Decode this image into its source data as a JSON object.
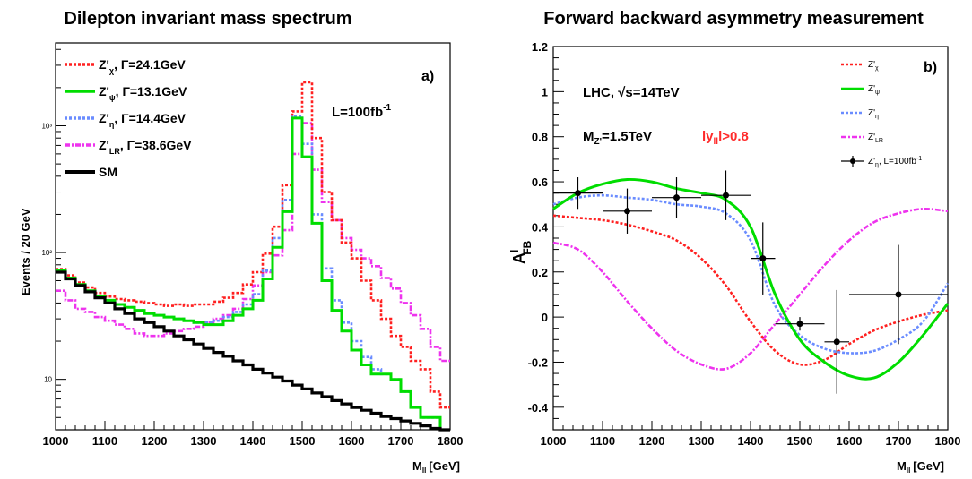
{
  "chart_data": [
    {
      "type": "line",
      "title": "Dilepton invariant mass spectrum",
      "xlabel": "M_ll [GeV]",
      "xlabel_text": "M",
      "xlabel_sub": "ll",
      "xlabel_unit": "[GeV]",
      "ylabel": "Events / 20 GeV",
      "yscale": "log",
      "xlim": [
        1000,
        1800
      ],
      "ylim": [
        4,
        4500
      ],
      "x_ticks": [
        "1000",
        "1100",
        "1200",
        "1300",
        "1400",
        "1500",
        "1600",
        "1700",
        "1800"
      ],
      "y_ticks": [
        {
          "value": 10,
          "label": "10"
        },
        {
          "value": 100,
          "label": "10²"
        },
        {
          "value": 1000,
          "label": "10³"
        }
      ],
      "panel_label": "a)",
      "lumi_label": "L=100fb",
      "lumi_sup": "-1",
      "bin_edges": [
        1000,
        1020,
        1040,
        1060,
        1080,
        1100,
        1120,
        1140,
        1160,
        1180,
        1200,
        1220,
        1240,
        1260,
        1280,
        1300,
        1320,
        1340,
        1360,
        1380,
        1400,
        1420,
        1440,
        1460,
        1480,
        1500,
        1520,
        1540,
        1560,
        1580,
        1600,
        1620,
        1640,
        1660,
        1680,
        1700,
        1720,
        1740,
        1760,
        1780,
        1800
      ],
      "series": [
        {
          "name": "Z'χ",
          "legend_label": "Z'",
          "legend_sub": "χ",
          "legend_width": "Γ=24.1GeV",
          "color": "#ff2020",
          "style": "dotted",
          "values": [
            74,
            66,
            58,
            53,
            48,
            45,
            43,
            42,
            41,
            40,
            39,
            38,
            39,
            38,
            39,
            39,
            41,
            44,
            48,
            56,
            70,
            98,
            160,
            340,
            1300,
            2200,
            800,
            300,
            180,
            120,
            90,
            60,
            42,
            30,
            22,
            18,
            14,
            12,
            8,
            6
          ]
        },
        {
          "name": "Z'ψ",
          "legend_label": "Z'",
          "legend_sub": "ψ",
          "legend_width": "Γ=13.1GeV",
          "color": "#00dd00",
          "style": "solid",
          "values": [
            72,
            63,
            56,
            50,
            45,
            42,
            39,
            37,
            35,
            33,
            32,
            31,
            30,
            29,
            28,
            27,
            27,
            29,
            32,
            36,
            42,
            62,
            110,
            210,
            1150,
            570,
            170,
            60,
            35,
            24,
            17,
            13,
            11,
            11,
            10,
            8,
            6,
            5,
            5,
            4
          ]
        },
        {
          "name": "Z'η",
          "legend_label": "Z'",
          "legend_sub": "η",
          "legend_width": "Γ=14.4GeV",
          "color": "#6a8cff",
          "style": "dotted",
          "values": [
            72,
            63,
            56,
            50,
            45,
            42,
            39,
            37,
            35,
            33,
            32,
            31,
            30,
            29,
            28,
            28,
            29,
            31,
            34,
            39,
            47,
            72,
            130,
            260,
            1200,
            720,
            200,
            75,
            42,
            28,
            20,
            15,
            12,
            11,
            10,
            8,
            6,
            5,
            5,
            4
          ]
        },
        {
          "name": "Z'LR",
          "legend_label": "Z'",
          "legend_sub": "LR",
          "legend_width": "Γ=38.6GeV",
          "color": "#ee33ee",
          "style": "dashdot",
          "values": [
            50,
            42,
            36,
            34,
            31,
            29,
            27,
            25,
            23,
            22,
            22,
            23,
            24,
            25,
            26,
            28,
            30,
            32,
            36,
            43,
            55,
            70,
            95,
            150,
            600,
            1050,
            450,
            250,
            180,
            130,
            105,
            90,
            78,
            63,
            52,
            40,
            32,
            25,
            18,
            14
          ]
        },
        {
          "name": "SM",
          "legend_label": "SM",
          "legend_sub": "",
          "legend_width": "",
          "color": "#000000",
          "style": "solid",
          "values": [
            70,
            62,
            55,
            49,
            44,
            40,
            36,
            33,
            30,
            28,
            26,
            24,
            22,
            20.5,
            19,
            17.5,
            16.3,
            15.2,
            14,
            13,
            12,
            11.2,
            10.4,
            9.7,
            9.0,
            8.4,
            7.8,
            7.3,
            6.8,
            6.4,
            6.0,
            5.7,
            5.4,
            5.1,
            4.9,
            4.7,
            4.5,
            4.3,
            4.1,
            4.0
          ]
        }
      ]
    },
    {
      "type": "line",
      "title": "Forward backward asymmetry measurement",
      "xlabel": "M_ll [GeV]",
      "xlabel_text": "M",
      "xlabel_sub": "ll",
      "xlabel_unit": "[GeV]",
      "ylabel": "A^l_FB",
      "ylabel_main": "A",
      "ylabel_sup": "l",
      "ylabel_sub": "FB",
      "xlim": [
        1000,
        1800
      ],
      "ylim": [
        -0.5,
        1.2
      ],
      "x_ticks": [
        "1000",
        "1100",
        "1200",
        "1300",
        "1400",
        "1500",
        "1600",
        "1700",
        "1800"
      ],
      "y_ticks": [
        "-0.4",
        "-0.2",
        "0",
        "0.2",
        "0.4",
        "0.6",
        "0.8",
        "1",
        "1.2"
      ],
      "panel_label": "b)",
      "annotations": {
        "lhc_a": "LHC, ",
        "lhc_sqrt": "√",
        "lhc_b": "s=14TeV",
        "mass_a": "M",
        "mass_sub": "Z'",
        "mass_b": "=1.5TeV",
        "cut": "ly",
        "cut_sub": "ll",
        "cut_b": "l>0.8"
      },
      "series": [
        {
          "name": "Z'χ",
          "legend_label": "Z'",
          "legend_sub": "χ",
          "color": "#ff2020",
          "style": "dotted",
          "x": [
            1000,
            1050,
            1100,
            1150,
            1200,
            1250,
            1300,
            1350,
            1400,
            1450,
            1500,
            1550,
            1600,
            1650,
            1700,
            1750,
            1800
          ],
          "y": [
            0.45,
            0.44,
            0.43,
            0.41,
            0.38,
            0.34,
            0.26,
            0.14,
            -0.02,
            -0.15,
            -0.21,
            -0.19,
            -0.12,
            -0.06,
            -0.02,
            0.01,
            0.03
          ]
        },
        {
          "name": "Z'ψ",
          "legend_label": "Z'",
          "legend_sub": "ψ",
          "color": "#00dd00",
          "style": "solid",
          "x": [
            1000,
            1050,
            1100,
            1150,
            1200,
            1250,
            1300,
            1350,
            1400,
            1450,
            1500,
            1550,
            1600,
            1650,
            1700,
            1750,
            1800
          ],
          "y": [
            0.48,
            0.55,
            0.59,
            0.61,
            0.6,
            0.57,
            0.55,
            0.52,
            0.4,
            0.1,
            -0.1,
            -0.2,
            -0.26,
            -0.27,
            -0.2,
            -0.08,
            0.06
          ]
        },
        {
          "name": "Z'η",
          "legend_label": "Z'",
          "legend_sub": "η",
          "color": "#6a8cff",
          "style": "dotted",
          "x": [
            1000,
            1050,
            1100,
            1150,
            1200,
            1250,
            1300,
            1350,
            1400,
            1450,
            1500,
            1550,
            1600,
            1650,
            1700,
            1750,
            1800
          ],
          "y": [
            0.5,
            0.53,
            0.54,
            0.53,
            0.52,
            0.5,
            0.49,
            0.46,
            0.34,
            0.05,
            -0.08,
            -0.14,
            -0.16,
            -0.15,
            -0.1,
            -0.02,
            0.15
          ]
        },
        {
          "name": "Z'LR",
          "legend_label": "Z'",
          "legend_sub": "LR",
          "color": "#ee33ee",
          "style": "dashdot",
          "x": [
            1000,
            1050,
            1100,
            1150,
            1200,
            1250,
            1300,
            1350,
            1400,
            1450,
            1500,
            1550,
            1600,
            1650,
            1700,
            1750,
            1800
          ],
          "y": [
            0.33,
            0.3,
            0.2,
            0.07,
            -0.05,
            -0.15,
            -0.21,
            -0.23,
            -0.16,
            -0.03,
            0.1,
            0.23,
            0.34,
            0.42,
            0.46,
            0.48,
            0.47
          ]
        },
        {
          "name": "Z'η, L=100fb-1 (data)",
          "legend_label": "Z'",
          "legend_sub": "η",
          "legend_rest": ", L=100fb",
          "legend_sup": "-1",
          "color": "#000000",
          "style": "points",
          "points": [
            {
              "x": 1050,
              "y": 0.55,
              "xerr": 50,
              "yerr": 0.07
            },
            {
              "x": 1150,
              "y": 0.47,
              "xerr": 50,
              "yerr": 0.1
            },
            {
              "x": 1250,
              "y": 0.53,
              "xerr": 50,
              "yerr": 0.09
            },
            {
              "x": 1350,
              "y": 0.54,
              "xerr": 50,
              "yerr": 0.11
            },
            {
              "x": 1425,
              "y": 0.26,
              "xerr": 25,
              "yerr": 0.16
            },
            {
              "x": 1500,
              "y": -0.03,
              "xerr": 50,
              "yerr": 0.03
            },
            {
              "x": 1575,
              "y": -0.11,
              "xerr": 25,
              "yerr": 0.23
            },
            {
              "x": 1700,
              "y": 0.1,
              "xerr": 100,
              "yerr": 0.22
            }
          ]
        }
      ]
    }
  ]
}
